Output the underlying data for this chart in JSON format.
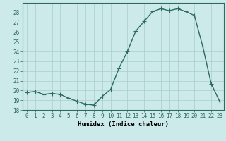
{
  "x": [
    0,
    1,
    2,
    3,
    4,
    5,
    6,
    7,
    8,
    9,
    10,
    11,
    12,
    13,
    14,
    15,
    16,
    17,
    18,
    19,
    20,
    21,
    22,
    23
  ],
  "y": [
    19.8,
    19.9,
    19.6,
    19.7,
    19.6,
    19.2,
    18.9,
    18.6,
    18.5,
    19.4,
    20.1,
    22.3,
    24.0,
    26.1,
    27.1,
    28.1,
    28.4,
    28.2,
    28.4,
    28.1,
    27.7,
    24.5,
    20.7,
    18.9
  ],
  "line_color": "#2d6b5e",
  "marker_color": "#2d6b5e",
  "bg_color": "#cceaea",
  "grid_color": "#aacccc",
  "xlabel": "Humidex (Indice chaleur)",
  "ylim": [
    18,
    29
  ],
  "yticks": [
    18,
    19,
    20,
    21,
    22,
    23,
    24,
    25,
    26,
    27,
    28
  ],
  "xticks": [
    0,
    1,
    2,
    3,
    4,
    5,
    6,
    7,
    8,
    9,
    10,
    11,
    12,
    13,
    14,
    15,
    16,
    17,
    18,
    19,
    20,
    21,
    22,
    23
  ],
  "tick_fontsize": 5.5,
  "xlabel_fontsize": 6.5,
  "marker_size": 2.0,
  "line_width": 1.0
}
